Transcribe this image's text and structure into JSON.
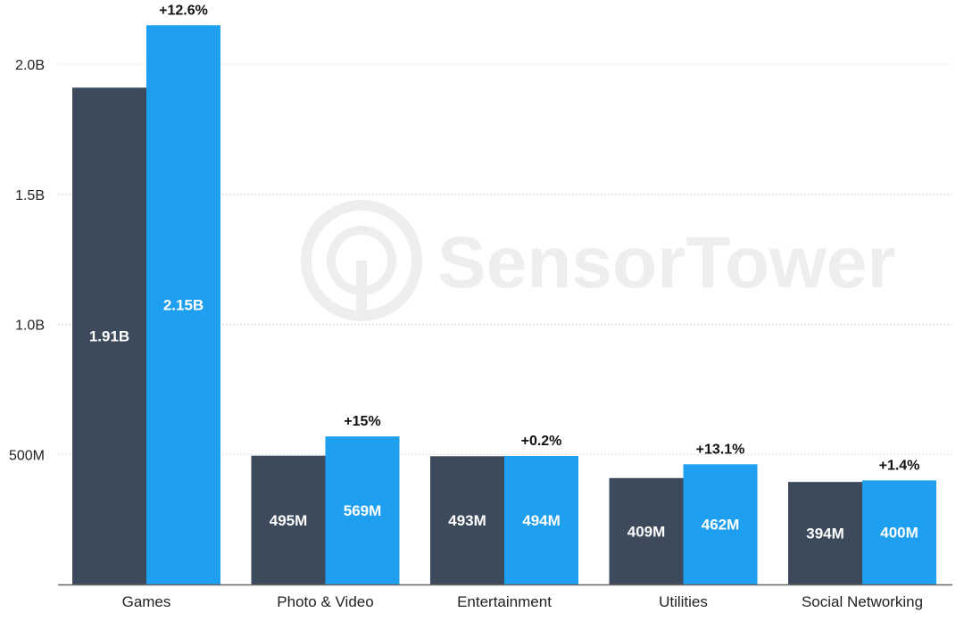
{
  "watermark": "SensorTower",
  "colors": {
    "series_a": "#3d4a5c",
    "series_b": "#1f9ff0",
    "grid": "#dddddd",
    "axis": "#666666"
  },
  "chart_data": {
    "type": "bar",
    "categories": [
      "Games",
      "Photo & Video",
      "Entertainment",
      "Utilities",
      "Social Networking"
    ],
    "series": [
      {
        "values": [
          1910,
          495,
          493,
          409,
          394
        ],
        "value_labels": [
          "1.91B",
          "495M",
          "493M",
          "409M",
          "394M"
        ]
      },
      {
        "values": [
          2150,
          569,
          494,
          462,
          400
        ],
        "value_labels": [
          "2.15B",
          "569M",
          "494M",
          "462M",
          "400M"
        ]
      }
    ],
    "change_labels": [
      "+12.6%",
      "+15%",
      "+0.2%",
      "+13.1%",
      "+1.4%"
    ],
    "y_ticks": [
      {
        "value": 500,
        "label": "500M"
      },
      {
        "value": 1000,
        "label": "1.0B"
      },
      {
        "value": 1500,
        "label": "1.5B"
      },
      {
        "value": 2000,
        "label": "2.0B"
      }
    ],
    "ylim": [
      0,
      2230
    ],
    "grid": true,
    "legend": "none"
  }
}
